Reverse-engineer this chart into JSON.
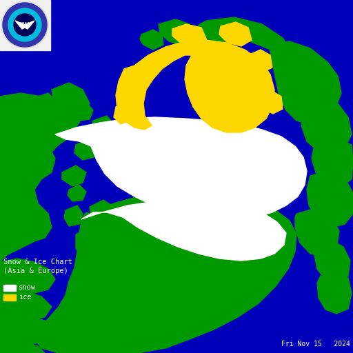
{
  "background_color": "#0000BB",
  "ocean_color": "#0000BB",
  "land_green_color": "#009900",
  "snow_color": "#FFFFFF",
  "ice_color": "#FFD700",
  "border_color": "#000000",
  "title_line1": "Snow & Ice Chart",
  "title_line2": "(Asia & Europe)",
  "legend_snow_label": "snow",
  "legend_ice_label": "ice",
  "date_text": "Fri Nov 15   2024",
  "text_color": "#FFFFFF",
  "figsize": [
    5.12,
    5.12
  ],
  "dpi": 100
}
